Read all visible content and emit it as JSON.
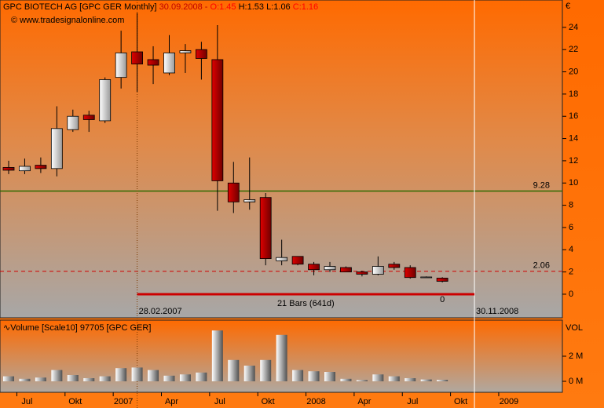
{
  "chart_data": [
    {
      "type": "candlestick",
      "title": "GPC BIOTECH AG [GPC GER  Monthly]",
      "header": [
        {
          "text": "30.09.2008 -",
          "color": "#c00000"
        },
        {
          "text": "O:1.45",
          "color": "#ff0000"
        },
        {
          "text": "H:1.53",
          "color": "#000000"
        },
        {
          "text": "L:1.06",
          "color": "#000000"
        },
        {
          "text": "C:1.16",
          "color": "#ff0000"
        }
      ],
      "source": "© www.tradesignalonline.com",
      "currency": "€",
      "up_color": "#ffffff",
      "down_color": "#cc0000",
      "open": [
        11.4,
        11.1,
        11.6,
        11.3,
        14.8,
        16.1,
        15.6,
        19.5,
        21.8,
        21.1,
        19.9,
        21.7,
        22.0,
        21.1,
        10.0,
        8.3,
        8.7,
        3.0,
        3.4,
        2.7,
        2.2,
        2.4,
        2.0,
        1.8,
        2.7,
        2.4,
        1.5,
        1.45,
        null,
        null,
        null,
        null
      ],
      "high": [
        12.0,
        12.2,
        12.3,
        16.9,
        16.6,
        16.5,
        19.5,
        23.7,
        25.3,
        22.3,
        23.3,
        22.5,
        22.7,
        24.2,
        11.9,
        12.3,
        9.1,
        4.9,
        3.4,
        2.9,
        2.9,
        2.5,
        2.1,
        3.4,
        2.9,
        2.6,
        1.6,
        1.53,
        null,
        null,
        null,
        null
      ],
      "low": [
        10.8,
        10.8,
        10.9,
        10.6,
        14.6,
        14.6,
        15.4,
        18.5,
        18.2,
        18.9,
        19.7,
        19.9,
        19.3,
        7.5,
        7.3,
        7.6,
        2.6,
        2.6,
        2.6,
        1.7,
        2.0,
        2.0,
        1.6,
        1.7,
        2.2,
        1.4,
        1.5,
        1.06,
        null,
        null,
        null,
        null
      ],
      "close": [
        11.15,
        11.5,
        11.3,
        14.9,
        16.0,
        15.7,
        19.3,
        21.7,
        20.7,
        20.6,
        21.7,
        21.9,
        21.2,
        10.2,
        8.3,
        8.5,
        3.2,
        3.3,
        2.7,
        2.2,
        2.5,
        2.0,
        1.8,
        2.5,
        2.4,
        1.5,
        1.55,
        1.16,
        null,
        null,
        null,
        null
      ],
      "ylim": [
        -2.12,
        26.46
      ],
      "yticks": [
        0,
        2,
        4,
        6,
        8,
        10,
        12,
        14,
        16,
        18,
        20,
        22,
        24
      ],
      "hlines": [
        {
          "value": 9.28,
          "color": "#2e6b00",
          "dash": false
        },
        {
          "value": 2.06,
          "color": "#d00000",
          "dash": true
        }
      ],
      "markers": [
        {
          "text": "28.02.2007"
        },
        {
          "text": "30.11.2008"
        }
      ],
      "range_bar": {
        "label": "21 Bars (641d)",
        "value": 0,
        "color": "#cc0000"
      }
    },
    {
      "type": "bar",
      "title": "∿Volume [Scale10] 97705 [GPC GER]",
      "ylabel": "VOL",
      "categories": [
        null,
        "Jul",
        null,
        null,
        "Okt",
        null,
        null,
        "2007",
        null,
        null,
        "Apr",
        null,
        null,
        "Jul",
        null,
        null,
        "Okt",
        null,
        null,
        "2008",
        null,
        null,
        "Apr",
        null,
        null,
        "Jul",
        null,
        null,
        "Okt",
        null,
        null,
        "2009"
      ],
      "values": [
        0.4,
        0.2,
        0.3,
        0.9,
        0.5,
        0.25,
        0.4,
        1.05,
        1.1,
        0.9,
        0.45,
        0.55,
        0.7,
        4.05,
        1.7,
        1.25,
        1.7,
        3.7,
        0.9,
        0.8,
        0.75,
        0.2,
        0.1,
        0.55,
        0.4,
        0.25,
        0.15,
        0.12,
        null,
        null,
        null,
        null
      ],
      "ylim": [
        -0.875,
        4.875
      ],
      "yticks": [
        {
          "value": 0,
          "label": "0 M"
        },
        {
          "value": 2,
          "label": "2 M"
        }
      ]
    }
  ]
}
